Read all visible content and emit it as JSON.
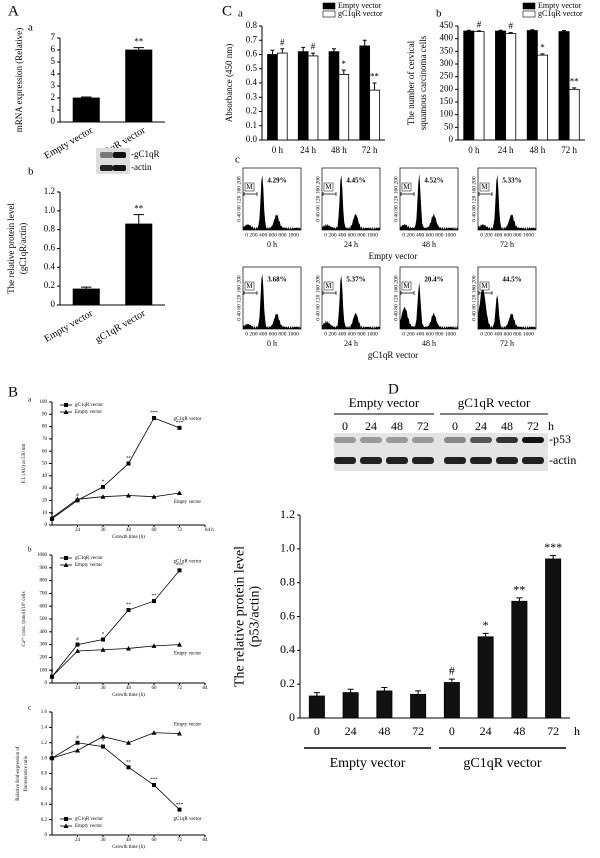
{
  "panel_labels": [
    "A",
    "B",
    "C",
    "D"
  ],
  "chart_data": [
    {
      "type": "bar",
      "panel": "a",
      "ylabel": [
        "mRNA expression (Relative)"
      ],
      "categories": [
        "Empty vector",
        "gC1qR vector"
      ],
      "values": [
        2,
        6
      ],
      "errors": [
        0.08,
        0.2
      ],
      "significance": [
        null,
        "**"
      ],
      "color": "#000000",
      "ylim": [
        0,
        7
      ],
      "yticks": [
        0,
        1,
        2,
        3,
        4,
        5,
        6,
        7
      ]
    },
    {
      "type": "bar",
      "panel": "b",
      "ylabel": [
        "The relative protein level",
        "(gC1qR/actin)"
      ],
      "categories": [
        "Empty vector",
        "gC1qR vector"
      ],
      "values": [
        0.17,
        0.86
      ],
      "errors": [
        0.02,
        0.1
      ],
      "significance": [
        null,
        "**"
      ],
      "color": "#000000",
      "ylim": [
        0,
        1.2
      ],
      "yticks": [
        0,
        0.2,
        0.4,
        0.6,
        0.8,
        {
          "value": 1,
          "label": "1.0"
        },
        1.2
      ]
    },
    {
      "type": "bar",
      "panel": "a",
      "ylabel": [
        "Absorbance (450 nm)"
      ],
      "categories": [
        "0 h",
        "24 h",
        "48 h",
        "72 h"
      ],
      "legend": "top-right",
      "series": [
        {
          "name": "Empty vector",
          "color": "#000000",
          "values": [
            0.6,
            0.62,
            0.62,
            0.66
          ],
          "errors": [
            0.03,
            0.03,
            0.02,
            0.04
          ],
          "significance": [
            null,
            null,
            null,
            null
          ]
        },
        {
          "name": "gC1qR vector",
          "color": "#ffffff",
          "values": [
            0.61,
            0.59,
            0.46,
            0.35
          ],
          "errors": [
            0.03,
            0.02,
            0.03,
            0.05
          ],
          "significance": [
            "#",
            "#",
            "*",
            "**"
          ]
        }
      ],
      "ylim": [
        0,
        0.8
      ],
      "yticks": [
        {
          "value": 0,
          "label": "0.0"
        },
        0.1,
        0.2,
        0.3,
        0.4,
        0.5,
        0.6,
        0.7,
        0.8
      ]
    },
    {
      "type": "bar",
      "panel": "b",
      "ylabel": [
        "The number of cervical",
        "squamous carcinoma cells"
      ],
      "categories": [
        "0 h",
        "24 h",
        "48 h",
        "72 h"
      ],
      "legend": "top-right",
      "series": [
        {
          "name": "Empty vector",
          "color": "#000000",
          "values": [
            430,
            430,
            432,
            428
          ],
          "errors": [
            3,
            3,
            3,
            4
          ],
          "significance": [
            null,
            null,
            null,
            null
          ]
        },
        {
          "name": "gC1qR vector",
          "color": "#ffffff",
          "values": [
            428,
            420,
            335,
            200
          ],
          "errors": [
            3,
            4,
            5,
            6
          ],
          "significance": [
            "#",
            "#",
            "*",
            "**"
          ]
        }
      ],
      "ylim": [
        0,
        450
      ],
      "yticks": [
        0,
        50,
        100,
        150,
        200,
        250,
        300,
        350,
        400,
        450
      ]
    },
    {
      "type": "line",
      "panel": "a",
      "ylabel": [
        "F.I. (AU) at 530 nm"
      ],
      "xlabel": "Growth time (h)",
      "legend": "top-left",
      "x": [
        12,
        24,
        36,
        48,
        60,
        72
      ],
      "series": [
        {
          "name": "gC1qR vector",
          "color": "#000000",
          "marker": "square",
          "values": [
            5,
            20,
            31,
            50,
            87,
            79
          ],
          "significance": [
            "#",
            "#",
            "*",
            "**",
            "***",
            "***"
          ]
        },
        {
          "name": "Empty vector",
          "color": "#000000",
          "marker": "triangle",
          "values": [
            6,
            21,
            23,
            24,
            23,
            26
          ]
        }
      ],
      "xlim": [
        12,
        84
      ],
      "xticks": [
        24,
        36,
        48,
        60,
        72,
        {
          "value": 84,
          "label": "84 h"
        }
      ],
      "ylim": [
        0,
        100
      ],
      "yticks": [
        0,
        10,
        20,
        30,
        40,
        50,
        60,
        70,
        80,
        90,
        100
      ]
    },
    {
      "type": "line",
      "panel": "b",
      "ylabel": [
        "Ca²⁺ conc. (nmol)/10⁶ cells"
      ],
      "xlabel": "Growth time (h)",
      "legend": "top-left",
      "x": [
        12,
        24,
        36,
        48,
        60,
        72
      ],
      "series": [
        {
          "name": "gC1qR vector",
          "color": "#000000",
          "marker": "square",
          "values": [
            50,
            300,
            340,
            570,
            640,
            880
          ],
          "significance": [
            "#",
            "#",
            "*",
            "**",
            "**",
            "***"
          ]
        },
        {
          "name": "Empty vector",
          "color": "#000000",
          "marker": "triangle",
          "values": [
            50,
            250,
            260,
            270,
            290,
            300
          ]
        }
      ],
      "xlim": [
        12,
        84
      ],
      "xticks": [
        24,
        36,
        48,
        60,
        72,
        84
      ],
      "ylim": [
        0,
        1000
      ],
      "yticks": [
        0,
        100,
        200,
        300,
        400,
        500,
        600,
        700,
        800,
        900,
        1000
      ]
    },
    {
      "type": "line",
      "panel": "c",
      "ylabel": [
        "Relative fold-expression of",
        "fluorescence ratio"
      ],
      "xlabel": "Growth time (h)",
      "legend": "bottom-left",
      "x": [
        12,
        24,
        36,
        48,
        60,
        72
      ],
      "series": [
        {
          "name": "gC1qR vector",
          "color": "#000000",
          "marker": "square",
          "values": [
            1,
            1.2,
            1.15,
            0.88,
            0.65,
            0.33
          ],
          "significance": [
            "#",
            "#",
            "*",
            "**",
            "***",
            "***"
          ]
        },
        {
          "name": "Empty vector",
          "color": "#000000",
          "marker": "triangle",
          "values": [
            1,
            1.1,
            1.28,
            1.2,
            1.33,
            1.32
          ]
        }
      ],
      "xlim": [
        12,
        84
      ],
      "xticks": [
        24,
        36,
        48,
        60,
        72,
        84
      ],
      "ylim": [
        0,
        1.6
      ],
      "yticks": [
        0,
        0.2,
        0.4,
        0.6,
        0.8,
        {
          "value": 1,
          "label": "1.0"
        },
        1.2,
        1.4,
        1.6
      ]
    },
    {
      "type": "bar",
      "ylabel": [
        "The relative protein level",
        "(p53/actin)"
      ],
      "categories": [
        "0",
        "24",
        "48",
        "72",
        "0",
        "24",
        "48",
        "72"
      ],
      "x_unit": "h",
      "groups": [
        "Empty vector",
        "gC1qR vector"
      ],
      "values": [
        0.13,
        0.15,
        0.16,
        0.14,
        0.21,
        0.48,
        0.69,
        0.94
      ],
      "errors": [
        0.02,
        0.02,
        0.02,
        0.02,
        0.02,
        0.02,
        0.02,
        0.02
      ],
      "significance": [
        null,
        null,
        null,
        null,
        "#",
        "*",
        "**",
        "***"
      ],
      "color": "#111111",
      "ylim": [
        0,
        1.2
      ],
      "yticks": [
        0,
        0.2,
        0.4,
        0.6,
        0.8,
        {
          "value": 1,
          "label": "1.0"
        },
        1.2
      ]
    }
  ],
  "blots": [
    {
      "labels": [
        "-gC1qR",
        "-actin"
      ]
    },
    {
      "groups": [
        "Empty vector",
        "gC1qR vector"
      ],
      "times": [
        "0",
        "24",
        "48",
        "72",
        "0",
        "24",
        "48",
        "72"
      ],
      "unit": "h",
      "labels": [
        "-p53",
        "-actin"
      ]
    }
  ],
  "flow": {
    "panel": "c",
    "gate": "M",
    "y_ticks": "0 40 80 120 160 200",
    "x_ticks": "0 200 400 600 800 1000",
    "times": [
      "0 h",
      "24 h",
      "48 h",
      "72 h"
    ],
    "rows": [
      {
        "title": "Empty vector",
        "percentages": [
          "4.29%",
          "4.45%",
          "4.52%",
          "5.33%"
        ]
      },
      {
        "title": "gC1qR vector",
        "percentages": [
          "3.68%",
          "5.37%",
          "20.4%",
          "44.5%"
        ]
      }
    ]
  }
}
